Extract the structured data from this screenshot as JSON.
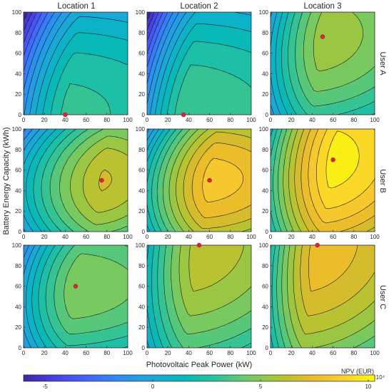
{
  "figure": {
    "column_titles": [
      "Location 1",
      "Location 2",
      "Location 3"
    ],
    "row_titles": [
      "User A",
      "User B",
      "User C"
    ],
    "xlabel": "Photovoltaic Peak Power (kW)",
    "ylabel": "Battery Energy Capacity (kWh)",
    "colorbar": {
      "label": "NPV (EUR)",
      "multiplier": "×10⁴",
      "ticks": [
        "-5",
        "0",
        "5",
        "10"
      ],
      "tick_values": [
        -5,
        0,
        5,
        10
      ],
      "range": [
        -6,
        10.3
      ],
      "colormap": [
        "#3e26a8",
        "#4742e5",
        "#4365fe",
        "#2d8df2",
        "#1da6db",
        "#02b8bd",
        "#2bc29c",
        "#6dca69",
        "#afc431",
        "#e8b92a",
        "#fcce2e",
        "#f9fb0e"
      ]
    }
  },
  "chart_data": {
    "type": "heatmap",
    "subtype": "contour",
    "x_range": [
      0,
      100
    ],
    "y_range": [
      0,
      100
    ],
    "xticks": [
      0,
      20,
      40,
      60,
      80,
      100
    ],
    "yticks": [
      0,
      20,
      40,
      60,
      80,
      100
    ],
    "z_units": "EUR ×10^4",
    "panels": [
      {
        "row": "User A",
        "column": "Location 1",
        "optimum": {
          "x": 40,
          "y": 0
        },
        "npv_max": 3.0,
        "npv_corner_x0_y100": -5.8,
        "npv_corner_x100_y0": 1.6
      },
      {
        "row": "User A",
        "column": "Location 2",
        "optimum": {
          "x": 35,
          "y": 0
        },
        "npv_max": 3.4,
        "npv_corner_x0_y100": -5.6,
        "npv_corner_x100_y0": 1.8
      },
      {
        "row": "User A",
        "column": "Location 3",
        "optimum": {
          "x": 50,
          "y": 76
        },
        "npv_max": 5.5,
        "npv_corner_x0_y100": -5.5,
        "npv_corner_x100_y0": 3.0
      },
      {
        "row": "User B",
        "column": "Location 1",
        "optimum": {
          "x": 75,
          "y": 50
        },
        "npv_max": 6.6,
        "npv_corner_x0_y100": -5.2,
        "npv_corner_x100_y0": 5.0
      },
      {
        "row": "User B",
        "column": "Location 2",
        "optimum": {
          "x": 60,
          "y": 50
        },
        "npv_max": 8.4,
        "npv_corner_x0_y100": -5.2,
        "npv_corner_x100_y0": 6.5
      },
      {
        "row": "User B",
        "column": "Location 3",
        "optimum": {
          "x": 60,
          "y": 70
        },
        "npv_max": 9.9,
        "npv_corner_x0_y100": -5.0,
        "npv_corner_x100_y0": 7.0
      },
      {
        "row": "User C",
        "column": "Location 1",
        "optimum": {
          "x": 50,
          "y": 60
        },
        "npv_max": 4.9,
        "npv_corner_x0_y100": -5.4,
        "npv_corner_x100_y0": 3.2
      },
      {
        "row": "User C",
        "column": "Location 2",
        "optimum": {
          "x": 50,
          "y": 100
        },
        "npv_max": 6.3,
        "npv_corner_x0_y100": -5.0,
        "npv_corner_x100_y0": 4.0
      },
      {
        "row": "User C",
        "column": "Location 3",
        "optimum": {
          "x": 45,
          "y": 100
        },
        "npv_max": 7.8,
        "npv_corner_x0_y100": -4.8,
        "npv_corner_x100_y0": 4.6
      }
    ]
  }
}
